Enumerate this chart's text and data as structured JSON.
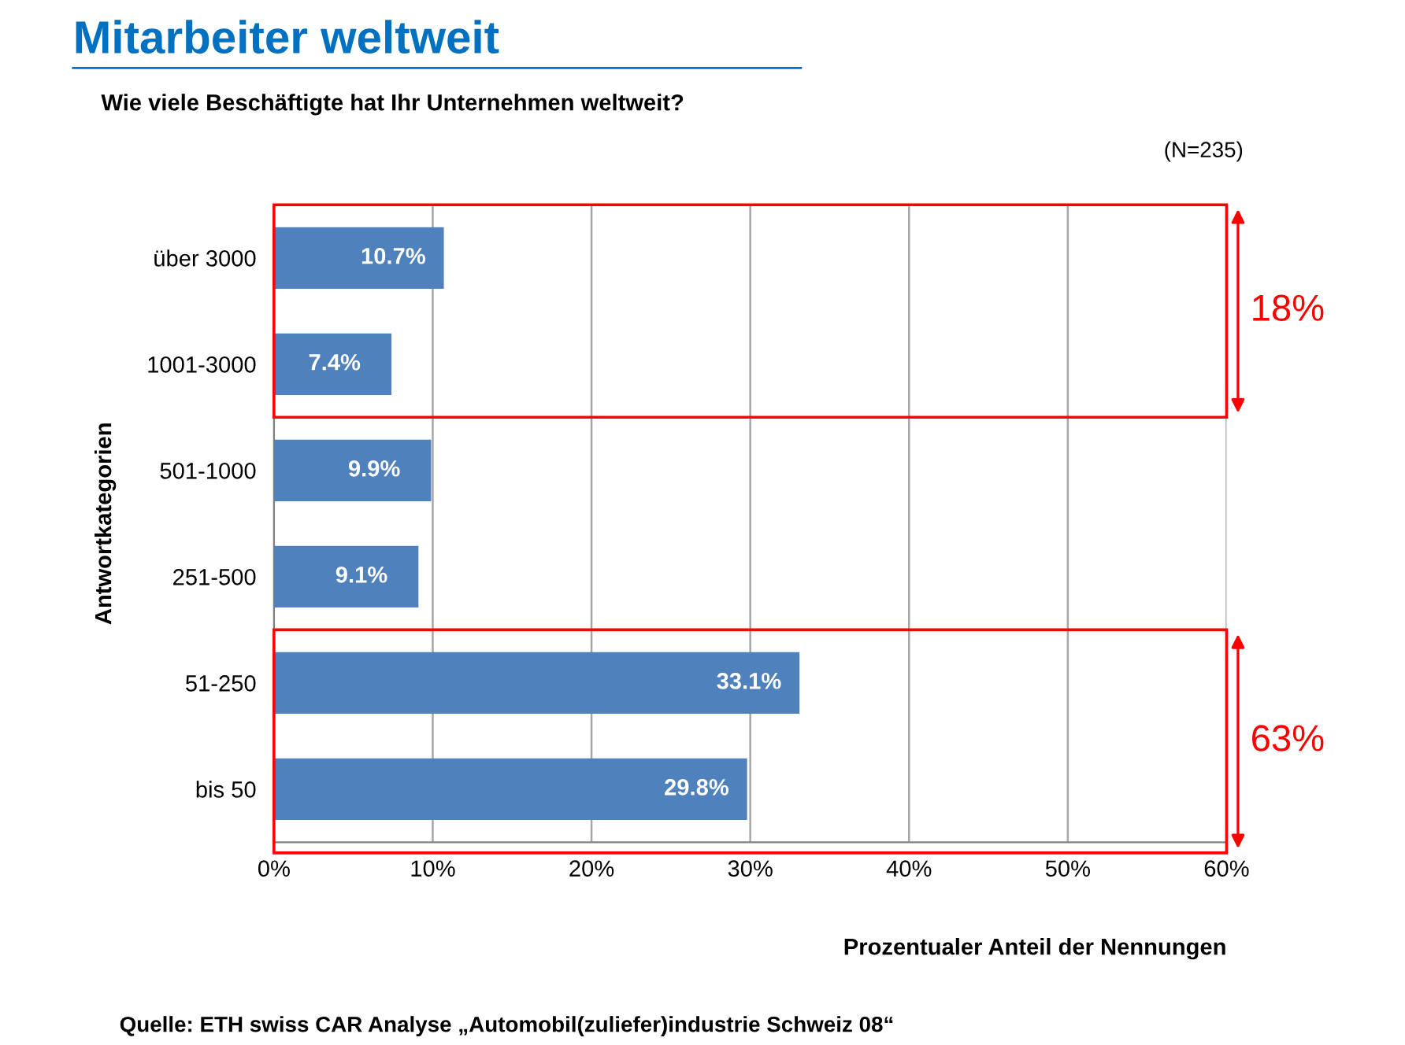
{
  "chart_data": {
    "type": "bar",
    "orientation": "horizontal",
    "title": "Mitarbeiter weltweit",
    "subtitle": "Wie viele Beschäftigte hat Ihr Unternehmen weltweit?",
    "categories": [
      "über 3000",
      "1001-3000",
      "501-1000",
      "251-500",
      "51-250",
      "bis 50"
    ],
    "values": [
      10.7,
      7.4,
      9.9,
      9.1,
      33.1,
      29.8
    ],
    "value_labels": [
      "10.7%",
      "7.4%",
      "9.9%",
      "9.1%",
      "33.1%",
      "29.8%"
    ],
    "color": "#4f81bd",
    "xlim": [
      0,
      60
    ],
    "xticks": [
      {
        "value": 0,
        "label": "0%"
      },
      {
        "value": 10,
        "label": "10%"
      },
      {
        "value": 20,
        "label": "20%"
      },
      {
        "value": 30,
        "label": "30%"
      },
      {
        "value": 40,
        "label": "40%"
      },
      {
        "value": 50,
        "label": "50%"
      },
      {
        "value": 60,
        "label": "60%"
      }
    ],
    "grid": "x",
    "legend": false,
    "xlabel": "Prozentualer Anteil der Nennungen",
    "ylabel": "Antwortkategorien",
    "annotations": [
      "18%",
      "63%",
      "(N=235)",
      "Quelle: ETH swiss CAR Analyse „Automobil(zuliefer)industrie Schweiz 08“"
    ]
  }
}
